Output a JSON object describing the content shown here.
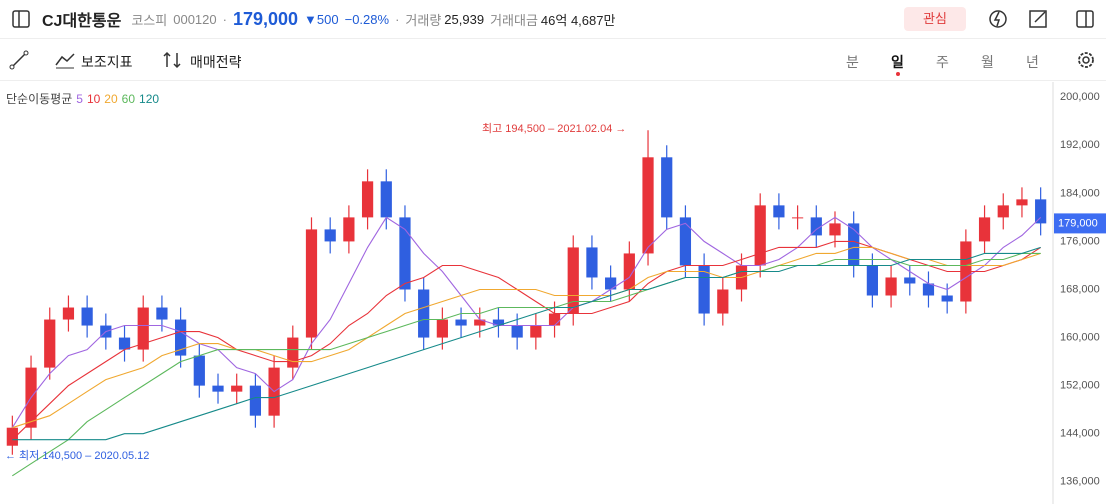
{
  "header": {
    "name": "CJ대한통운",
    "market": "코스피",
    "code": "000120",
    "sep": "·",
    "price": "179,000",
    "change": "▼500",
    "change_pct": "−0.28%",
    "sep2": "·",
    "volume_label": "거래량",
    "volume": "25,939",
    "amount_label": "거래대금",
    "amount": "46억 4,687만",
    "watch": "관심"
  },
  "toolbar": {
    "indicators": "보조지표",
    "strategy": "매매전략",
    "periods": [
      "분",
      "일",
      "주",
      "월",
      "년"
    ],
    "selected": 1
  },
  "chart_data": {
    "type": "candlestick",
    "indicator_label": "단순이동평균",
    "up_color": "#e8333a",
    "down_color": "#2f5fe0",
    "categories": [
      null,
      null,
      null,
      null,
      null,
      null,
      null,
      null,
      null,
      null,
      null,
      null,
      null,
      null,
      null,
      null,
      null,
      null,
      null,
      null,
      null,
      null,
      null,
      null,
      null,
      null,
      null,
      null,
      null,
      null,
      null,
      null,
      null,
      null,
      null,
      null,
      null,
      null,
      null,
      null,
      null,
      null,
      null,
      null,
      null,
      null,
      null,
      null,
      null,
      null,
      null,
      null,
      null,
      null,
      null,
      null
    ],
    "open": [
      142000,
      145000,
      155000,
      163000,
      165000,
      162000,
      160000,
      158000,
      165000,
      163000,
      157000,
      152000,
      151000,
      152000,
      147000,
      155000,
      160000,
      178000,
      176000,
      180000,
      186000,
      180000,
      168000,
      160000,
      163000,
      162000,
      163000,
      162000,
      160000,
      162000,
      164000,
      175000,
      170000,
      168000,
      174000,
      190000,
      180000,
      172000,
      164000,
      168000,
      172000,
      182000,
      180000,
      180000,
      177000,
      179000,
      172000,
      167000,
      170000,
      169000,
      167000,
      166000,
      176000,
      180000,
      182000,
      183000
    ],
    "high": [
      147000,
      157000,
      165000,
      167000,
      167000,
      164000,
      162000,
      167000,
      167000,
      165000,
      159000,
      154000,
      154000,
      154000,
      157000,
      162000,
      180000,
      180000,
      182000,
      188000,
      188000,
      182000,
      170000,
      165000,
      165000,
      165000,
      165000,
      164000,
      164000,
      166000,
      177000,
      177000,
      172000,
      176000,
      194500,
      192000,
      182000,
      174000,
      170000,
      174000,
      184000,
      184000,
      182000,
      182000,
      181000,
      181000,
      174000,
      172000,
      172000,
      171000,
      169000,
      178000,
      182000,
      184000,
      185000,
      185000
    ],
    "low": [
      140500,
      143000,
      153000,
      161000,
      160000,
      158000,
      156000,
      156000,
      161000,
      155000,
      150000,
      149000,
      149000,
      145000,
      145000,
      153000,
      158000,
      174000,
      174000,
      178000,
      178000,
      166000,
      158000,
      158000,
      160000,
      160000,
      160000,
      158000,
      158000,
      160000,
      162000,
      168000,
      166000,
      166000,
      172000,
      178000,
      170000,
      162000,
      162000,
      166000,
      170000,
      178000,
      178000,
      175000,
      175000,
      170000,
      165000,
      165000,
      167000,
      165000,
      164000,
      164000,
      174000,
      178000,
      180000,
      177000
    ],
    "close": [
      145000,
      155000,
      163000,
      165000,
      162000,
      160000,
      158000,
      165000,
      163000,
      157000,
      152000,
      151000,
      152000,
      147000,
      155000,
      160000,
      178000,
      176000,
      180000,
      186000,
      180000,
      168000,
      160000,
      163000,
      162000,
      163000,
      162000,
      160000,
      162000,
      164000,
      175000,
      170000,
      168000,
      174000,
      190000,
      180000,
      172000,
      164000,
      168000,
      172000,
      182000,
      180000,
      180000,
      177000,
      179000,
      172000,
      167000,
      170000,
      169000,
      167000,
      166000,
      176000,
      180000,
      182000,
      183000,
      179000
    ],
    "series": [
      {
        "name": "5",
        "color": "#a066e0",
        "values": [
          145000,
          150000,
          154000,
          157000,
          158000,
          161000,
          162000,
          162000,
          162000,
          161000,
          159000,
          158000,
          155000,
          154000,
          151000,
          153000,
          159000,
          163000,
          169000,
          175000,
          180000,
          178000,
          174000,
          171000,
          167000,
          163000,
          162000,
          162000,
          162000,
          162000,
          165000,
          166000,
          168000,
          170000,
          175000,
          178000,
          179000,
          176000,
          174000,
          172000,
          172000,
          173000,
          175000,
          178000,
          180000,
          178000,
          175000,
          173000,
          171000,
          169000,
          168000,
          170000,
          172000,
          175000,
          177000,
          180000
        ]
      },
      {
        "name": "10",
        "color": "#e8333a",
        "values": [
          143000,
          146000,
          149000,
          152000,
          154000,
          156000,
          158000,
          159000,
          160000,
          161000,
          161000,
          160000,
          158000,
          157000,
          156000,
          156000,
          157000,
          159000,
          162000,
          164000,
          167000,
          169000,
          170000,
          172000,
          172000,
          171000,
          170000,
          168000,
          166000,
          164000,
          164000,
          164000,
          165000,
          166000,
          169000,
          171000,
          172000,
          172000,
          172000,
          173000,
          174000,
          175000,
          175000,
          175000,
          176000,
          176000,
          175000,
          174000,
          173000,
          172000,
          171000,
          171000,
          171000,
          172000,
          173000,
          175000
        ]
      },
      {
        "name": "20",
        "color": "#f0a830",
        "values": [
          145000,
          146000,
          147000,
          149000,
          151000,
          153000,
          154000,
          155000,
          157000,
          158000,
          159000,
          159000,
          158000,
          158000,
          157000,
          156000,
          156000,
          157000,
          158000,
          160000,
          162000,
          164000,
          165000,
          166000,
          167000,
          168000,
          168000,
          168000,
          168000,
          167000,
          167000,
          167000,
          167000,
          168000,
          170000,
          171000,
          171000,
          171000,
          170000,
          170000,
          171000,
          172000,
          173000,
          174000,
          174000,
          175000,
          175000,
          174000,
          173000,
          173000,
          172000,
          172000,
          172000,
          172000,
          173000,
          174000
        ]
      },
      {
        "name": "60",
        "color": "#5cb85c",
        "values": [
          137000,
          139000,
          141000,
          143000,
          146000,
          148000,
          150000,
          152000,
          154000,
          156000,
          157000,
          158000,
          158000,
          158000,
          158000,
          158000,
          158000,
          158000,
          159000,
          160000,
          161000,
          162000,
          163000,
          163000,
          164000,
          164000,
          165000,
          165000,
          165000,
          165000,
          166000,
          166000,
          166000,
          167000,
          168000,
          169000,
          170000,
          170000,
          170000,
          171000,
          171000,
          172000,
          172000,
          172000,
          173000,
          173000,
          173000,
          173000,
          172000,
          172000,
          172000,
          172000,
          173000,
          173000,
          174000,
          174000
        ]
      },
      {
        "name": "120",
        "color": "#168a8a",
        "values": [
          143000,
          143000,
          143000,
          143000,
          143000,
          143000,
          144000,
          144000,
          145000,
          146000,
          147000,
          148000,
          149000,
          150000,
          150000,
          151000,
          152000,
          153000,
          154000,
          155000,
          156000,
          157000,
          158000,
          159000,
          160000,
          161000,
          162000,
          163000,
          164000,
          165000,
          165000,
          166000,
          167000,
          168000,
          168000,
          169000,
          170000,
          170000,
          170000,
          171000,
          171000,
          171000,
          172000,
          172000,
          172000,
          172000,
          172000,
          172000,
          173000,
          173000,
          173000,
          173000,
          174000,
          174000,
          174000,
          175000
        ]
      }
    ],
    "ylim": [
      132300,
      202200
    ],
    "yticks": [
      {
        "value": 136000,
        "label": "136,000"
      },
      {
        "value": 144000,
        "label": "144,000"
      },
      {
        "value": 152000,
        "label": "152,000"
      },
      {
        "value": 160000,
        "label": "160,000"
      },
      {
        "value": 168000,
        "label": "168,000"
      },
      {
        "value": 176000,
        "label": "176,000"
      },
      {
        "value": 184000,
        "label": "184,000"
      },
      {
        "value": 192000,
        "label": "192,000"
      },
      {
        "value": 200000,
        "label": "200,000"
      }
    ],
    "last_price": {
      "value": 179000,
      "label": "179,000"
    },
    "high_note": "최고 194,500 – 2021.02.04 →",
    "low_note": "← 최저 140,500 – 2020.05.12"
  }
}
